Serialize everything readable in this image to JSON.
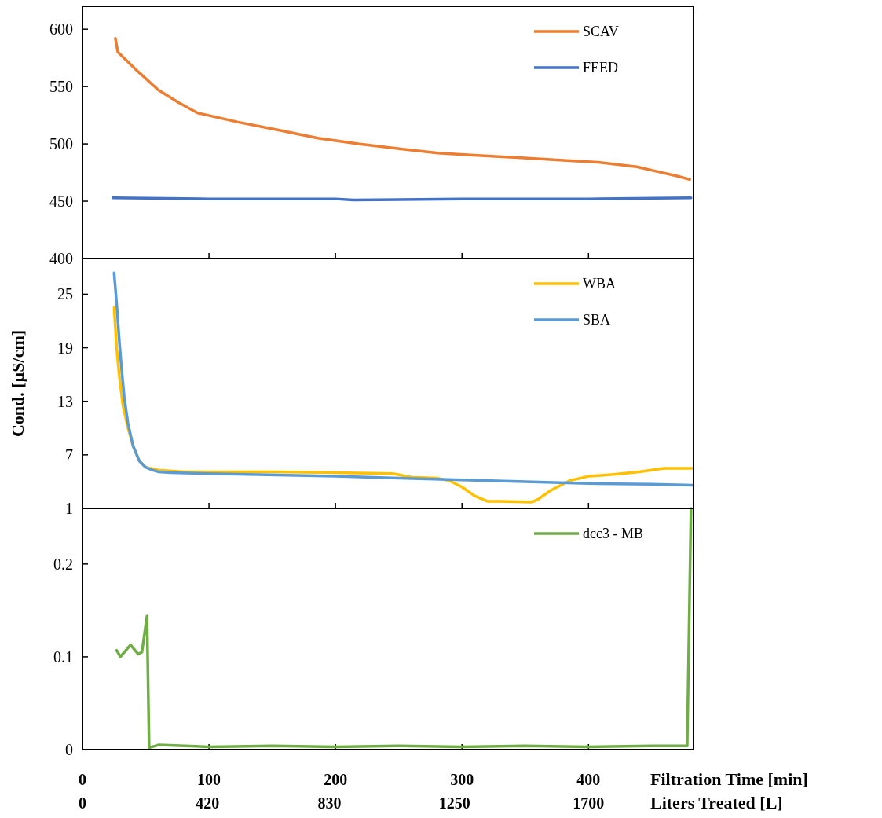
{
  "chart_data": [
    {
      "type": "line",
      "xlim": [
        0,
        483
      ],
      "ylim": [
        400,
        620
      ],
      "yticks": [
        400,
        450,
        500,
        550,
        600
      ],
      "tick_labels": "y",
      "legend": "top right",
      "series": [
        {
          "name": "SCAV",
          "color": "#ed7d31",
          "x": [
            26,
            28,
            44,
            60,
            76,
            91,
            123,
            155,
            186,
            218,
            249,
            281,
            312,
            344,
            375,
            407,
            438,
            454,
            470,
            480
          ],
          "values": [
            592,
            580,
            563,
            547,
            536,
            527,
            519,
            512,
            505,
            500,
            496,
            492,
            490,
            488,
            486,
            484,
            480,
            476,
            472,
            469
          ]
        },
        {
          "name": "FEED",
          "color": "#4472c4",
          "x": [
            24,
            100,
            200,
            214,
            300,
            400,
            481
          ],
          "values": [
            453,
            452,
            452,
            451,
            452,
            452,
            453
          ]
        }
      ]
    },
    {
      "type": "line",
      "xlim": [
        0,
        483
      ],
      "ylim": [
        1,
        29
      ],
      "yticks": [
        1,
        7,
        13,
        19,
        25
      ],
      "tick_labels": "y",
      "ylabel": "Cond. [µS/cm]",
      "legend": "top right",
      "series": [
        {
          "name": "WBA",
          "color": "#ffc000",
          "x": [
            25,
            27,
            29,
            32,
            36,
            40,
            45,
            50,
            60,
            80,
            150,
            200,
            245,
            260,
            280,
            290,
            300,
            310,
            320,
            330,
            355,
            360,
            370,
            385,
            400,
            420,
            440,
            460,
            482
          ],
          "values": [
            23.5,
            19,
            16,
            12.5,
            10,
            8,
            6.3,
            5.6,
            5.3,
            5.1,
            5.1,
            5,
            4.9,
            4.5,
            4.4,
            4.1,
            3.4,
            2.4,
            1.8,
            1.8,
            1.7,
            2,
            3,
            4.1,
            4.6,
            4.8,
            5.1,
            5.5,
            5.5
          ]
        },
        {
          "name": "SBA",
          "color": "#5b9bd5",
          "x": [
            25,
            27,
            29,
            31,
            33,
            36,
            40,
            45,
            50,
            55,
            60,
            70,
            100,
            200,
            250,
            300,
            350,
            400,
            450,
            482
          ],
          "values": [
            27.4,
            24,
            20,
            16.5,
            13.5,
            10.5,
            8,
            6.3,
            5.6,
            5.3,
            5.1,
            5,
            4.9,
            4.6,
            4.4,
            4.2,
            4,
            3.8,
            3.7,
            3.6
          ]
        }
      ]
    },
    {
      "type": "line",
      "xlim": [
        0,
        483
      ],
      "ylim": [
        0,
        0.26
      ],
      "yticks": [
        0,
        0.1,
        0.2
      ],
      "xticks": [
        0,
        100,
        200,
        300,
        400
      ],
      "xlabel": "Filtration Time [min]",
      "x2lim": [
        0,
        2053
      ],
      "x2ticks": [
        0,
        420,
        830,
        1250,
        1700
      ],
      "x2label": "Liters Treated [L]",
      "legend": "top right",
      "series": [
        {
          "name": "dcc3 - MB",
          "color": "#70ad47",
          "x": [
            27,
            30,
            38,
            44,
            47,
            51,
            52.7,
            60,
            100,
            150,
            200,
            250,
            300,
            350,
            400,
            450,
            476,
            478,
            481
          ],
          "values": [
            0.107,
            0.1,
            0.113,
            0.103,
            0.105,
            0.144,
            0.002,
            0.005,
            0.003,
            0.004,
            0.003,
            0.004,
            0.003,
            0.004,
            0.003,
            0.004,
            0.004,
            0.004,
            0.26
          ]
        }
      ]
    }
  ]
}
